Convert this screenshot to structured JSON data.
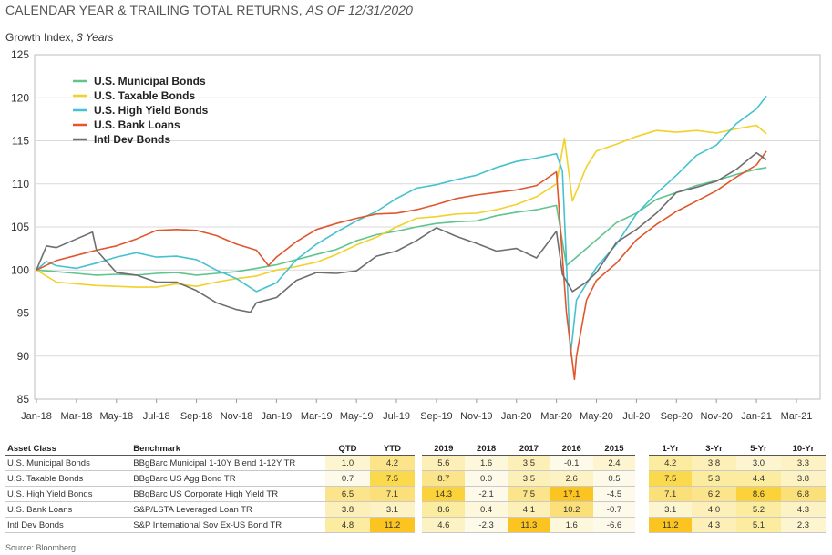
{
  "header": {
    "title": "CALENDAR YEAR & TRAILING TOTAL RETURNS, ",
    "title_date": "AS OF 12/31/2020",
    "subtitle": "Growth Index, ",
    "subtitle_period": "3 Years"
  },
  "chart_data": {
    "type": "line",
    "ylim": [
      85,
      125
    ],
    "y_ticks": [
      85,
      90,
      95,
      100,
      105,
      110,
      115,
      120,
      125
    ],
    "x_ticks": [
      "Jan-18",
      "Mar-18",
      "May-18",
      "Jul-18",
      "Sep-18",
      "Nov-18",
      "Jan-19",
      "Mar-19",
      "May-19",
      "Jul-19",
      "Sep-19",
      "Nov-19",
      "Jan-20",
      "Mar-20",
      "May-20",
      "Jul-20",
      "Sep-20",
      "Nov-20",
      "Jan-21",
      "Mar-21"
    ],
    "x_range_months": [
      0,
      38
    ],
    "grid": true,
    "legend": "top-left",
    "series": [
      {
        "name": "U.S.  Municipal Bonds",
        "color": "#5fc48e",
        "points": [
          [
            0,
            100
          ],
          [
            1,
            99.8
          ],
          [
            2,
            99.6
          ],
          [
            3,
            99.4
          ],
          [
            4,
            99.5
          ],
          [
            5,
            99.4
          ],
          [
            6,
            99.6
          ],
          [
            7,
            99.7
          ],
          [
            8,
            99.4
          ],
          [
            9,
            99.6
          ],
          [
            10,
            99.8
          ],
          [
            11,
            100.2
          ],
          [
            12,
            100.6
          ],
          [
            13,
            101.2
          ],
          [
            14,
            101.8
          ],
          [
            15,
            102.4
          ],
          [
            16,
            103.4
          ],
          [
            17,
            104.1
          ],
          [
            18,
            104.5
          ],
          [
            19,
            105.0
          ],
          [
            20,
            105.4
          ],
          [
            21,
            105.6
          ],
          [
            22,
            105.7
          ],
          [
            23,
            106.3
          ],
          [
            24,
            106.7
          ],
          [
            25,
            107.0
          ],
          [
            26,
            107.5
          ],
          [
            26.5,
            100.5
          ],
          [
            27,
            101.5
          ],
          [
            28,
            103.5
          ],
          [
            29,
            105.5
          ],
          [
            30,
            106.6
          ],
          [
            31,
            108.2
          ],
          [
            32,
            109.0
          ],
          [
            33,
            109.8
          ],
          [
            34,
            110.4
          ],
          [
            35,
            111.1
          ],
          [
            36,
            111.7
          ],
          [
            36.5,
            111.9
          ]
        ]
      },
      {
        "name": "U.S.  Taxable Bonds",
        "color": "#f2d12a",
        "points": [
          [
            0,
            100
          ],
          [
            1,
            98.6
          ],
          [
            2,
            98.4
          ],
          [
            3,
            98.2
          ],
          [
            4,
            98.1
          ],
          [
            5,
            98.0
          ],
          [
            6,
            98.0
          ],
          [
            7,
            98.4
          ],
          [
            8,
            98.1
          ],
          [
            9,
            98.6
          ],
          [
            10,
            99.0
          ],
          [
            11,
            99.3
          ],
          [
            12,
            100.0
          ],
          [
            13,
            100.4
          ],
          [
            14,
            100.9
          ],
          [
            15,
            101.8
          ],
          [
            16,
            102.9
          ],
          [
            17,
            103.8
          ],
          [
            18,
            105.0
          ],
          [
            19,
            106.0
          ],
          [
            20,
            106.2
          ],
          [
            21,
            106.5
          ],
          [
            22,
            106.6
          ],
          [
            23,
            107.0
          ],
          [
            24,
            107.6
          ],
          [
            25,
            108.5
          ],
          [
            26,
            110.0
          ],
          [
            26.4,
            115.3
          ],
          [
            26.8,
            108.0
          ],
          [
            27.5,
            112.0
          ],
          [
            28,
            113.8
          ],
          [
            29,
            114.6
          ],
          [
            30,
            115.5
          ],
          [
            31,
            116.2
          ],
          [
            32,
            116.0
          ],
          [
            33,
            116.2
          ],
          [
            34,
            115.9
          ],
          [
            35,
            116.4
          ],
          [
            36,
            116.8
          ],
          [
            36.5,
            115.8
          ]
        ]
      },
      {
        "name": "U.S.  High Yield Bonds",
        "color": "#45c2cf",
        "points": [
          [
            0,
            100
          ],
          [
            0.5,
            101.0
          ],
          [
            1,
            100.5
          ],
          [
            2,
            100.2
          ],
          [
            3,
            100.8
          ],
          [
            4,
            101.5
          ],
          [
            5,
            102.0
          ],
          [
            6,
            101.5
          ],
          [
            7,
            101.6
          ],
          [
            8,
            101.2
          ],
          [
            9,
            100.0
          ],
          [
            10,
            99.0
          ],
          [
            11,
            97.5
          ],
          [
            12,
            98.5
          ],
          [
            13,
            101.2
          ],
          [
            14,
            103.0
          ],
          [
            15,
            104.4
          ],
          [
            16,
            105.7
          ],
          [
            17,
            106.8
          ],
          [
            18,
            108.3
          ],
          [
            19,
            109.5
          ],
          [
            20,
            109.9
          ],
          [
            21,
            110.5
          ],
          [
            22,
            111.0
          ],
          [
            23,
            111.9
          ],
          [
            24,
            112.6
          ],
          [
            25,
            113.0
          ],
          [
            26,
            113.5
          ],
          [
            26.3,
            111.5
          ],
          [
            26.7,
            90.0
          ],
          [
            27,
            96.5
          ],
          [
            28,
            100.3
          ],
          [
            29,
            103.0
          ],
          [
            30,
            106.5
          ],
          [
            31,
            108.9
          ],
          [
            32,
            111.0
          ],
          [
            33,
            113.3
          ],
          [
            34,
            114.5
          ],
          [
            35,
            117.0
          ],
          [
            36,
            118.7
          ],
          [
            36.5,
            120.2
          ]
        ]
      },
      {
        "name": "U.S.  Bank Loans",
        "color": "#e0562d",
        "points": [
          [
            0,
            100
          ],
          [
            1,
            101.1
          ],
          [
            2,
            101.7
          ],
          [
            3,
            102.3
          ],
          [
            4,
            102.8
          ],
          [
            5,
            103.6
          ],
          [
            6,
            104.6
          ],
          [
            7,
            104.7
          ],
          [
            8,
            104.6
          ],
          [
            9,
            104.0
          ],
          [
            10,
            103.0
          ],
          [
            11,
            102.3
          ],
          [
            11.6,
            100.5
          ],
          [
            12,
            101.5
          ],
          [
            13,
            103.3
          ],
          [
            14,
            104.7
          ],
          [
            15,
            105.4
          ],
          [
            16,
            106.0
          ],
          [
            17,
            106.5
          ],
          [
            18,
            106.6
          ],
          [
            19,
            107.0
          ],
          [
            20,
            107.6
          ],
          [
            21,
            108.3
          ],
          [
            22,
            108.7
          ],
          [
            23,
            109.0
          ],
          [
            24,
            109.3
          ],
          [
            25,
            109.8
          ],
          [
            26,
            111.4
          ],
          [
            26.5,
            95.0
          ],
          [
            26.9,
            87.3
          ],
          [
            27,
            90.0
          ],
          [
            27.5,
            96.5
          ],
          [
            28,
            98.8
          ],
          [
            29,
            100.8
          ],
          [
            30,
            103.5
          ],
          [
            31,
            105.3
          ],
          [
            32,
            106.8
          ],
          [
            33,
            108.0
          ],
          [
            34,
            109.2
          ],
          [
            35,
            110.8
          ],
          [
            36,
            112.2
          ],
          [
            36.5,
            113.8
          ]
        ]
      },
      {
        "name": "Intl Dev Bonds",
        "color": "#6e6e6e",
        "points": [
          [
            0,
            100
          ],
          [
            0.5,
            102.8
          ],
          [
            1,
            102.6
          ],
          [
            2,
            103.6
          ],
          [
            2.8,
            104.4
          ],
          [
            3,
            102.3
          ],
          [
            4,
            99.7
          ],
          [
            5,
            99.4
          ],
          [
            6,
            98.6
          ],
          [
            7,
            98.6
          ],
          [
            8,
            97.6
          ],
          [
            9,
            96.2
          ],
          [
            10,
            95.4
          ],
          [
            10.7,
            95.1
          ],
          [
            11,
            96.2
          ],
          [
            12,
            96.8
          ],
          [
            13,
            98.8
          ],
          [
            14,
            99.7
          ],
          [
            15,
            99.6
          ],
          [
            16,
            99.9
          ],
          [
            17,
            101.6
          ],
          [
            18,
            102.2
          ],
          [
            19,
            103.4
          ],
          [
            20,
            104.9
          ],
          [
            21,
            103.9
          ],
          [
            22,
            103.1
          ],
          [
            23,
            102.2
          ],
          [
            24,
            102.5
          ],
          [
            25,
            101.4
          ],
          [
            26,
            104.5
          ],
          [
            26.3,
            99.5
          ],
          [
            26.8,
            97.5
          ],
          [
            27.5,
            98.6
          ],
          [
            28,
            99.7
          ],
          [
            29,
            103.2
          ],
          [
            30,
            104.7
          ],
          [
            31,
            106.6
          ],
          [
            32,
            109.0
          ],
          [
            33,
            109.6
          ],
          [
            34,
            110.3
          ],
          [
            35,
            111.7
          ],
          [
            36,
            113.6
          ],
          [
            36.5,
            112.8
          ]
        ]
      }
    ]
  },
  "table": {
    "headers": [
      "Asset Class",
      "Benchmark",
      "QTD",
      "YTD",
      "2019",
      "2018",
      "2017",
      "2016",
      "2015",
      "1-Yr",
      "3-Yr",
      "5-Yr",
      "10-Yr"
    ],
    "rows": [
      {
        "asset": "U.S. Municipal Bonds",
        "benchmark": "BBgBarc Municipal 1-10Y Blend 1-12Y TR",
        "values": [
          "1.0",
          "4.2",
          "5.6",
          "1.6",
          "3.5",
          "-0.1",
          "2.4",
          "4.2",
          "3.8",
          "3.0",
          "3.3"
        ]
      },
      {
        "asset": "U.S. Taxable Bonds",
        "benchmark": "BBgBarc US Agg Bond TR",
        "values": [
          "0.7",
          "7.5",
          "8.7",
          "0.0",
          "3.5",
          "2.6",
          "0.5",
          "7.5",
          "5.3",
          "4.4",
          "3.8"
        ]
      },
      {
        "asset": "U.S. High Yield Bonds",
        "benchmark": "BBgBarc US Corporate High Yield TR",
        "values": [
          "6.5",
          "7.1",
          "14.3",
          "-2.1",
          "7.5",
          "17.1",
          "-4.5",
          "7.1",
          "6.2",
          "8.6",
          "6.8"
        ]
      },
      {
        "asset": "U.S. Bank Loans",
        "benchmark": "S&P/LSTA Leveraged Loan TR",
        "values": [
          "3.8",
          "3.1",
          "8.6",
          "0.4",
          "4.1",
          "10.2",
          "-0.7",
          "3.1",
          "4.0",
          "5.2",
          "4.3"
        ]
      },
      {
        "asset": "Intl Dev Bonds",
        "benchmark": "S&P International Sov Ex-US Bond TR",
        "values": [
          "4.8",
          "11.2",
          "4.6",
          "-2.3",
          "11.3",
          "1.6",
          "-6.6",
          "11.2",
          "4.3",
          "5.1",
          "2.3"
        ]
      }
    ],
    "shades": [
      [
        "#fdf5cf",
        "#fbe48a",
        "#fdefb8",
        "#fdf7dc",
        "#fdefb8",
        "#fefae9",
        "#fdf5cf",
        "#fcec9f",
        "#fdefb8",
        "#fdf5cf",
        "#fdf2c4"
      ],
      [
        "#fefae9",
        "#fbd94d",
        "#fbe48a",
        "#fefae9",
        "#fdefb8",
        "#fdf2c4",
        "#fefae9",
        "#fbd94d",
        "#fcec9f",
        "#fcec9f",
        "#fdf2c4"
      ],
      [
        "#fbe48a",
        "#fbe07a",
        "#fcd23a",
        "#fefae9",
        "#fbe48a",
        "#fcc421",
        "#fefae9",
        "#fbe07a",
        "#fbe48a",
        "#fcd23a",
        "#fbe07a"
      ],
      [
        "#fdefb8",
        "#fdf2c4",
        "#fcec9f",
        "#fdf7dc",
        "#fdefb8",
        "#fbe07a",
        "#fefae9",
        "#fdf5cf",
        "#fdefb8",
        "#fcec9f",
        "#fdf2c4"
      ],
      [
        "#fcec9f",
        "#fcc421",
        "#fdf2c4",
        "#fefae9",
        "#fcc421",
        "#fdf7dc",
        "#fefae9",
        "#fcc421",
        "#fdefb8",
        "#fcec9f",
        "#fdf5cf"
      ]
    ]
  },
  "source": "Source: Bloomberg"
}
